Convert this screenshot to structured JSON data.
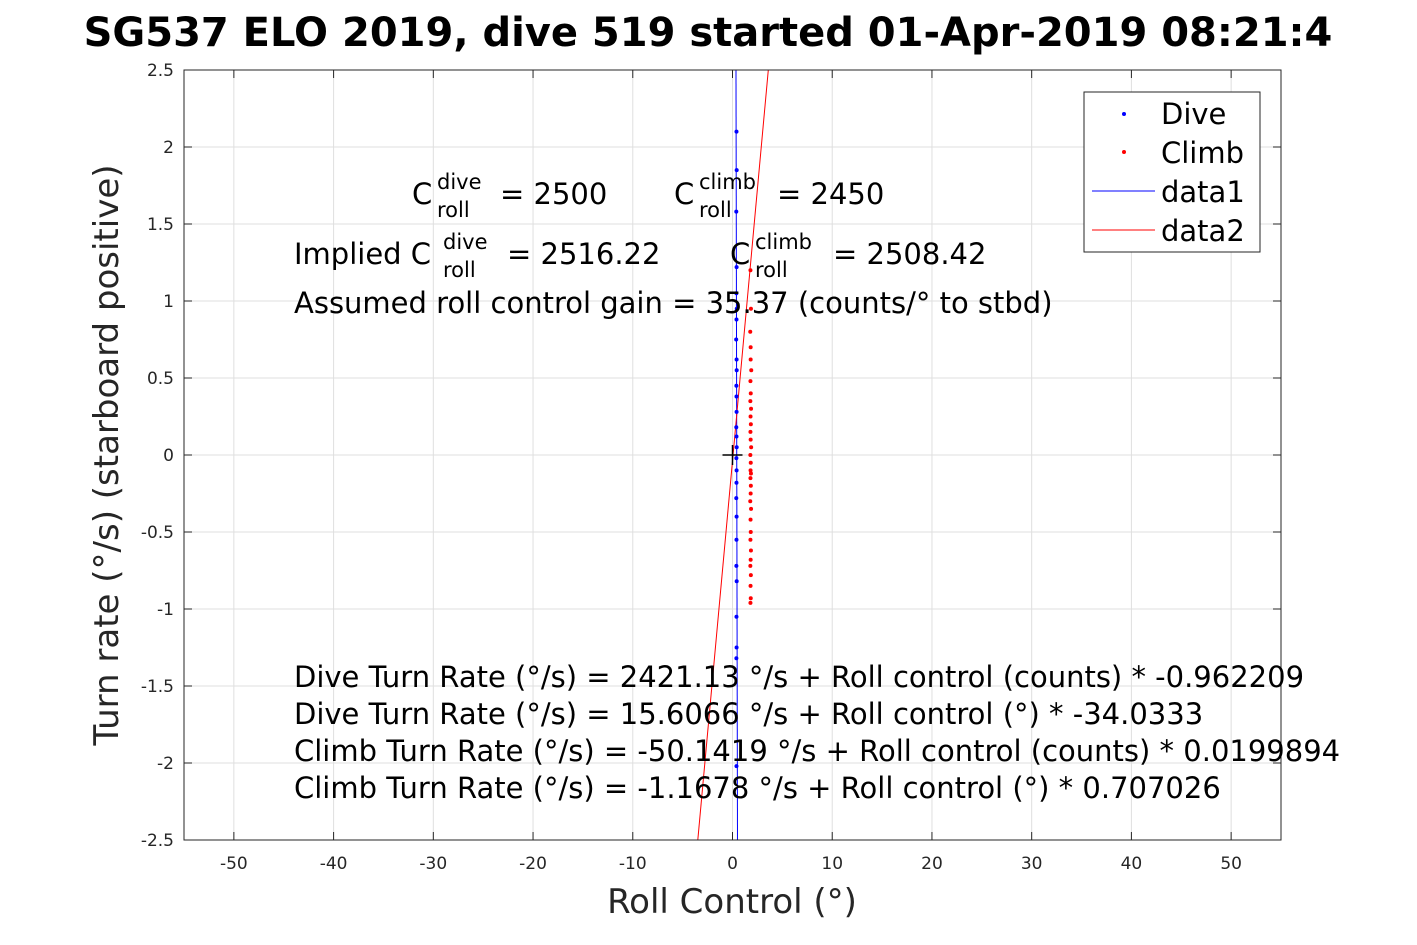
{
  "chart_data": {
    "type": "scatter",
    "title": "SG537 ELO 2019, dive 519 started 01-Apr-2019 08:21:4",
    "xlabel": "Roll Control (°)",
    "ylabel": "Turn rate (°/s) (starboard positive)",
    "xlim": [
      -55,
      55
    ],
    "ylim": [
      -2.5,
      2.5
    ],
    "xticks": [
      -50,
      -40,
      -30,
      -20,
      -10,
      0,
      10,
      20,
      30,
      40,
      50
    ],
    "yticks": [
      -2.5,
      -2,
      -1.5,
      -1,
      -0.5,
      0,
      0.5,
      1,
      1.5,
      2,
      2.5
    ],
    "xtick_labels": [
      "-50",
      "-40",
      "-30",
      "-20",
      "-10",
      "0",
      "10",
      "20",
      "30",
      "40",
      "50"
    ],
    "ytick_labels": [
      "-2.5",
      "-2",
      "-1.5",
      "-1",
      "-0.5",
      "0",
      "0.5",
      "1",
      "1.5",
      "2",
      "2.5"
    ],
    "grid": true,
    "legend_position": "top-right",
    "legend": [
      "Dive",
      "Climb",
      "data1",
      "data2"
    ],
    "colors": {
      "dive": "#0000ff",
      "climb": "#ff0000",
      "marker": "#000000"
    },
    "series": [
      {
        "name": "Dive",
        "style": "dots",
        "x": [
          0.4,
          0.42,
          0.38,
          0.41,
          0.39,
          0.43,
          0.4,
          0.37,
          0.41,
          0.42,
          0.39,
          0.4,
          0.41,
          0.38,
          0.4,
          0.42,
          0.39,
          0.41,
          0.4,
          0.38,
          0.41,
          0.4,
          0.39,
          0.42,
          0.4,
          0.41,
          0.39,
          0.4
        ],
        "y": [
          2.1,
          1.85,
          1.58,
          1.22,
          1.05,
          0.95,
          0.88,
          0.75,
          0.62,
          0.55,
          0.45,
          0.38,
          0.28,
          0.18,
          0.12,
          0.05,
          -0.02,
          -0.1,
          -0.18,
          -0.28,
          -0.4,
          -0.55,
          -0.72,
          -0.82,
          -1.05,
          -1.25,
          -1.32,
          -2.02
        ]
      },
      {
        "name": "Climb",
        "style": "dots",
        "x": [
          1.8,
          1.85,
          1.78,
          1.82,
          1.88,
          1.8,
          1.83,
          1.79,
          1.86,
          1.81,
          1.84,
          1.8,
          1.82,
          1.87,
          1.79,
          1.83,
          1.81,
          1.85,
          1.8,
          1.84,
          1.82,
          1.78,
          1.86,
          1.81,
          1.83,
          1.8,
          1.85,
          1.82,
          1.79,
          1.84,
          1.81,
          1.83,
          1.8,
          1.82
        ],
        "y": [
          1.2,
          0.95,
          0.8,
          0.62,
          0.55,
          0.48,
          0.4,
          0.35,
          0.3,
          0.25,
          0.2,
          0.15,
          0.1,
          0.05,
          0.0,
          -0.05,
          -0.1,
          -0.12,
          -0.15,
          -0.2,
          -0.25,
          -0.3,
          -0.35,
          -0.42,
          -0.5,
          -0.55,
          -0.62,
          -0.68,
          -0.72,
          -0.78,
          -0.85,
          -0.93,
          -0.96,
          0.7
        ]
      },
      {
        "name": "data1",
        "style": "line",
        "x": [
          0.35,
          0.5
        ],
        "y": [
          2.5,
          -2.5
        ]
      },
      {
        "name": "data2",
        "style": "line",
        "x": [
          -3.48,
          3.59
        ],
        "y": [
          -2.5,
          2.5
        ]
      }
    ],
    "center_marker": {
      "x": 0,
      "y": 0,
      "symbol": "+"
    },
    "annotations": {
      "c_roll_line": {
        "dive_base": "C",
        "dive_sup": "dive",
        "dive_sub": "roll",
        "dive_value": "= 2500",
        "climb_base": "C",
        "climb_sup": "climb",
        "climb_sub": "roll",
        "climb_value": "= 2450"
      },
      "implied_line": {
        "prefix": "Implied C",
        "dive_sup": "dive",
        "dive_sub": "roll",
        "dive_value": "= 2516.22",
        "climb_base": "C",
        "climb_sup": "climb",
        "climb_sub": "roll",
        "climb_value": "= 2508.42"
      },
      "gain_line": "Assumed roll control gain = 35.37 (counts/° to stbd)",
      "fit_lines": [
        "Dive Turn Rate (°/s) = 2421.13 °/s + Roll control (counts) * -0.962209",
        "Dive Turn Rate (°/s) = 15.6066 °/s + Roll control (°) * -34.0333",
        "Climb Turn Rate (°/s) = -50.1419 °/s + Roll control (counts) * 0.0199894",
        "Climb Turn Rate (°/s) = -1.1678 °/s + Roll control (°) * 0.707026"
      ]
    }
  }
}
